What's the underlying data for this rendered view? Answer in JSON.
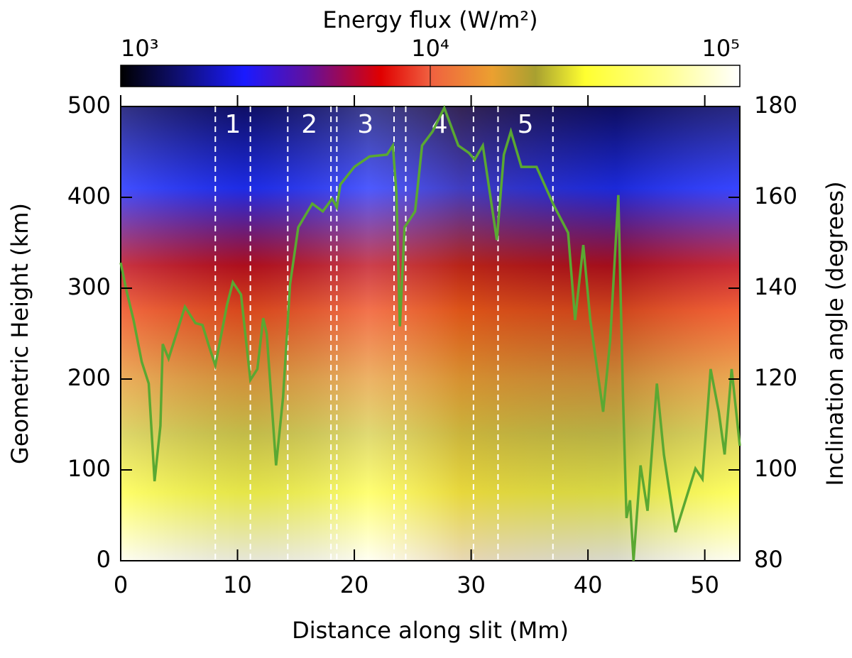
{
  "chart_data": {
    "type": "heatmap",
    "xlabel": "Distance along slit (Mm)",
    "ylabel": "Geometric Height (km)",
    "y2label": "Inclination angle (degrees)",
    "xlim": [
      0,
      53
    ],
    "xticks": [
      0,
      10,
      20,
      30,
      40,
      50
    ],
    "ylim": [
      0,
      500
    ],
    "yticks": [
      0,
      100,
      200,
      300,
      400,
      500
    ],
    "y2lim": [
      80,
      180
    ],
    "y2ticks": [
      80,
      100,
      120,
      140,
      160,
      180
    ],
    "colorbar": {
      "label": "Energy flux (W/m²)",
      "scale": "log",
      "lim": [
        1000,
        100000
      ],
      "ticks": [
        {
          "value": 1000,
          "label": "10³"
        },
        {
          "value": 10000,
          "label": "10⁴"
        },
        {
          "value": 100000,
          "label": "10⁵"
        }
      ]
    },
    "regions": [
      {
        "label": "1",
        "start": 8.1,
        "end": 11.1
      },
      {
        "label": "2",
        "start": 14.3,
        "end": 18.0
      },
      {
        "label": "3",
        "start": 18.5,
        "end": 23.4
      },
      {
        "label": "4",
        "start": 24.4,
        "end": 30.2
      },
      {
        "label": "5",
        "start": 32.3,
        "end": 37.0
      }
    ],
    "series": [
      {
        "color": "#5aa832",
        "axis": "y2",
        "x": [
          0,
          0.5,
          1.1,
          1.8,
          2.4,
          2.9,
          3.4,
          3.6,
          4.1,
          5.5,
          6.4,
          7.0,
          7.6,
          8.1,
          9.1,
          9.6,
          10.3,
          11.1,
          11.7,
          12.2,
          12.5,
          13.3,
          13.9,
          14.5,
          15.2,
          16.4,
          17.3,
          18.1,
          18.5,
          18.8,
          20.0,
          21.3,
          22.8,
          23.3,
          23.6,
          23.9,
          24.3,
          25.2,
          25.8,
          26.7,
          27.7,
          28.9,
          29.8,
          30.3,
          31.0,
          32.2,
          32.8,
          33.4,
          34.3,
          35.6,
          37.1,
          38.3,
          38.9,
          39.6,
          40.2,
          41.3,
          41.9,
          42.6,
          43.0,
          43.3,
          43.6,
          43.9,
          44.5,
          45.1,
          45.9,
          46.5,
          47.5,
          49.2,
          49.8,
          50.5,
          51.2,
          51.7,
          52.3,
          53.0
        ],
        "values": [
          145.6,
          139.4,
          133.0,
          123.8,
          119.0,
          97.5,
          109.7,
          127.7,
          124.5,
          135.9,
          132.3,
          131.9,
          126.9,
          123.0,
          136.3,
          141.3,
          138.6,
          119.8,
          122.2,
          133.4,
          130.0,
          101.0,
          116.0,
          140.9,
          153.4,
          158.6,
          156.9,
          159.7,
          157.8,
          162.8,
          166.7,
          169.0,
          169.4,
          171.4,
          161.0,
          131.6,
          153.4,
          156.9,
          171.4,
          174.5,
          179.7,
          171.4,
          169.8,
          168.3,
          171.4,
          150.6,
          169.4,
          174.5,
          166.7,
          166.7,
          158.1,
          152.2,
          133.0,
          149.5,
          133.0,
          112.8,
          128.4,
          160.5,
          116.0,
          89.4,
          93.3,
          80.0,
          101.0,
          91.0,
          119.0,
          103.4,
          86.3,
          100.3,
          98.0,
          122.2,
          112.8,
          103.4,
          122.2,
          105.3
        ]
      }
    ]
  }
}
